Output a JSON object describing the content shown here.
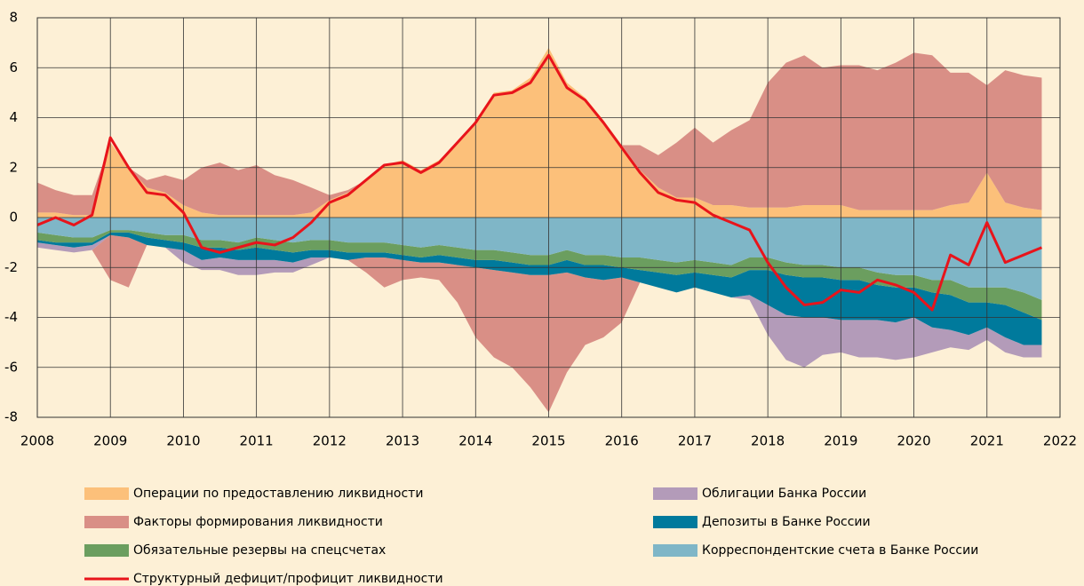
{
  "chart_data": {
    "type": "area",
    "stacked": true,
    "grid": true,
    "xlim": [
      2008,
      2022
    ],
    "xticks": [
      2008,
      2009,
      2010,
      2011,
      2012,
      2013,
      2014,
      2015,
      2016,
      2017,
      2018,
      2019,
      2020,
      2021,
      2022
    ],
    "ylim": [
      -8,
      8
    ],
    "yticks": [
      -8,
      -6,
      -4,
      -2,
      0,
      2,
      4,
      6,
      8
    ],
    "x": [
      2008,
      2008.25,
      2008.5,
      2008.75,
      2009,
      2009.25,
      2009.5,
      2009.75,
      2010,
      2010.25,
      2010.5,
      2010.75,
      2011,
      2011.25,
      2011.5,
      2011.75,
      2012,
      2012.25,
      2012.5,
      2012.75,
      2013,
      2013.25,
      2013.5,
      2013.75,
      2014,
      2014.25,
      2014.5,
      2014.75,
      2015,
      2015.25,
      2015.5,
      2015.75,
      2016,
      2016.25,
      2016.5,
      2016.75,
      2017,
      2017.25,
      2017.5,
      2017.75,
      2018,
      2018.25,
      2018.5,
      2018.75,
      2019,
      2019.25,
      2019.5,
      2019.75,
      2020,
      2020.25,
      2020.5,
      2020.75,
      2021,
      2021.25,
      2021.5,
      2021.75
    ],
    "series": [
      {
        "name": "Операции по предоставлению ликвидности",
        "color": "#fcc07a",
        "values": [
          0.2,
          0.2,
          0.1,
          0.1,
          3.0,
          2.0,
          1.2,
          1.0,
          0.5,
          0.2,
          0.1,
          0.1,
          0.1,
          0.1,
          0.1,
          0.2,
          0.7,
          1.0,
          1.5,
          2.1,
          2.3,
          1.9,
          2.3,
          3.0,
          3.9,
          5.0,
          5.1,
          5.6,
          6.8,
          5.4,
          4.8,
          3.9,
          2.9,
          1.9,
          1.2,
          0.8,
          0.8,
          0.5,
          0.5,
          0.4,
          0.4,
          0.4,
          0.5,
          0.5,
          0.5,
          0.3,
          0.3,
          0.3,
          0.3,
          0.3,
          0.5,
          0.6,
          1.8,
          0.6,
          0.4,
          0.3
        ]
      },
      {
        "name": "Факторы формирования ликвидности",
        "color": "#d98f86",
        "values": [
          1.2,
          0.9,
          0.8,
          0.8,
          -1.8,
          -2.0,
          0.3,
          0.7,
          1.0,
          1.8,
          2.1,
          1.8,
          2.0,
          1.6,
          1.4,
          1.0,
          0.2,
          0.1,
          -0.6,
          -1.2,
          -0.8,
          -0.6,
          -0.7,
          -1.5,
          -2.8,
          -3.5,
          -3.8,
          -4.5,
          -5.5,
          -4.0,
          -2.7,
          -2.3,
          -1.8,
          1.0,
          1.3,
          2.2,
          2.8,
          2.5,
          3.0,
          3.5,
          5.0,
          5.8,
          6.0,
          5.5,
          5.6,
          5.8,
          5.6,
          5.9,
          6.3,
          6.2,
          5.3,
          5.2,
          3.5,
          5.3,
          5.3,
          5.3
        ]
      },
      {
        "name": "Облигации Банка России",
        "color": "#b39bb9",
        "values": [
          -0.2,
          -0.2,
          -0.2,
          -0.2,
          0,
          0,
          0,
          0,
          -0.5,
          -0.4,
          -0.5,
          -0.6,
          -0.6,
          -0.5,
          -0.4,
          -0.3,
          0,
          0,
          0,
          0,
          0,
          0,
          0,
          0,
          0,
          0,
          0,
          0,
          0,
          0,
          0,
          0,
          0,
          0,
          0,
          0,
          0,
          0,
          0,
          -0.2,
          -1.2,
          -1.8,
          -2.0,
          -1.5,
          -1.3,
          -1.5,
          -1.5,
          -1.5,
          -1.6,
          -1.0,
          -0.7,
          -0.6,
          -0.5,
          -0.6,
          -0.5,
          -0.5
        ]
      },
      {
        "name": "Депозиты в Банке России",
        "color": "#007a9c",
        "values": [
          -0.1,
          -0.1,
          -0.2,
          -0.1,
          -0.1,
          -0.2,
          -0.3,
          -0.3,
          -0.3,
          -0.5,
          -0.4,
          -0.4,
          -0.5,
          -0.4,
          -0.4,
          -0.3,
          -0.3,
          -0.3,
          -0.2,
          -0.2,
          -0.2,
          -0.2,
          -0.3,
          -0.3,
          -0.3,
          -0.4,
          -0.4,
          -0.4,
          -0.4,
          -0.5,
          -0.5,
          -0.6,
          -0.4,
          -0.5,
          -0.6,
          -0.7,
          -0.6,
          -0.7,
          -0.8,
          -1.0,
          -1.4,
          -1.6,
          -1.6,
          -1.6,
          -1.6,
          -1.6,
          -1.4,
          -1.4,
          -1.2,
          -1.4,
          -1.4,
          -1.3,
          -1.0,
          -1.3,
          -1.3,
          -1.0
        ]
      },
      {
        "name": "Обязательные резервы на спецсчетах",
        "color": "#6b9e5f",
        "values": [
          -0.3,
          -0.3,
          -0.2,
          -0.2,
          -0.1,
          -0.1,
          -0.2,
          -0.2,
          -0.3,
          -0.3,
          -0.3,
          -0.3,
          -0.4,
          -0.4,
          -0.4,
          -0.4,
          -0.4,
          -0.4,
          -0.4,
          -0.4,
          -0.4,
          -0.4,
          -0.4,
          -0.4,
          -0.4,
          -0.4,
          -0.4,
          -0.4,
          -0.4,
          -0.4,
          -0.4,
          -0.4,
          -0.4,
          -0.5,
          -0.5,
          -0.5,
          -0.5,
          -0.5,
          -0.5,
          -0.5,
          -0.5,
          -0.5,
          -0.5,
          -0.5,
          -0.5,
          -0.5,
          -0.5,
          -0.5,
          -0.5,
          -0.5,
          -0.6,
          -0.6,
          -0.6,
          -0.7,
          -0.8,
          -0.8
        ]
      },
      {
        "name": "Корреспондентские счета в Банке России",
        "color": "#7fb6c7",
        "values": [
          -0.6,
          -0.7,
          -0.8,
          -0.8,
          -0.5,
          -0.5,
          -0.6,
          -0.7,
          -0.7,
          -0.9,
          -0.9,
          -1.0,
          -0.8,
          -0.9,
          -1.0,
          -0.9,
          -0.9,
          -1.0,
          -1.0,
          -1.0,
          -1.1,
          -1.2,
          -1.1,
          -1.2,
          -1.3,
          -1.3,
          -1.4,
          -1.5,
          -1.5,
          -1.3,
          -1.5,
          -1.5,
          -1.6,
          -1.6,
          -1.7,
          -1.8,
          -1.7,
          -1.8,
          -1.9,
          -1.6,
          -1.6,
          -1.8,
          -1.9,
          -1.9,
          -2.0,
          -2.0,
          -2.2,
          -2.3,
          -2.3,
          -2.5,
          -2.5,
          -2.8,
          -2.8,
          -2.8,
          -3.0,
          -3.3
        ]
      },
      {
        "name": "Структурный дефицит/профицит ликвидности",
        "color": "#e8141b",
        "type": "line",
        "values": [
          -0.3,
          0,
          -0.3,
          0.1,
          3.2,
          2.0,
          1.0,
          0.9,
          0.2,
          -1.2,
          -1.4,
          -1.2,
          -1.0,
          -1.1,
          -0.8,
          -0.2,
          0.6,
          0.9,
          1.5,
          2.1,
          2.2,
          1.8,
          2.2,
          3.0,
          3.8,
          4.9,
          5.0,
          5.4,
          6.5,
          5.2,
          4.7,
          3.8,
          2.8,
          1.8,
          1.0,
          0.7,
          0.6,
          0.1,
          -0.2,
          -0.5,
          -1.8,
          -2.8,
          -3.5,
          -3.4,
          -2.9,
          -3.0,
          -2.5,
          -2.7,
          -3.0,
          -3.7,
          -1.5,
          -1.9,
          -0.2,
          -1.8,
          -1.5,
          -1.2
        ]
      }
    ]
  }
}
